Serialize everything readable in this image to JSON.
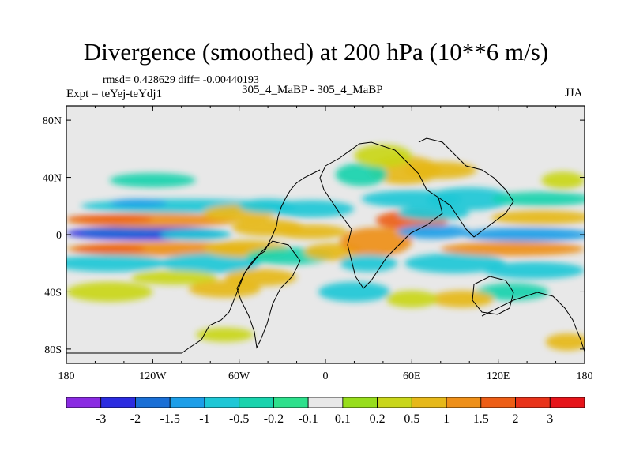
{
  "chart_data": {
    "type": "heatmap",
    "title": "Divergence (smoothed) at 200 hPa (10**6 m/s)",
    "stats_text": "rmsd= 0.428629  diff= -0.00440193",
    "experiment_label": "Expt = teYej-teYdj1",
    "center_label": "305_4_MaBP - 305_4_MaBP",
    "season": "JJA",
    "x_ticks": [
      {
        "value": -180,
        "label": "180"
      },
      {
        "value": -120,
        "label": "120W"
      },
      {
        "value": -60,
        "label": "60W"
      },
      {
        "value": 0,
        "label": "0"
      },
      {
        "value": 60,
        "label": "60E"
      },
      {
        "value": 120,
        "label": "120E"
      },
      {
        "value": 180,
        "label": "180"
      }
    ],
    "y_ticks": [
      {
        "value": 80,
        "label": "80N"
      },
      {
        "value": 40,
        "label": "40N"
      },
      {
        "value": 0,
        "label": "0"
      },
      {
        "value": -40,
        "label": "40S"
      },
      {
        "value": -80,
        "label": "80S"
      }
    ],
    "xlim": [
      -180,
      180
    ],
    "ylim": [
      -90,
      90
    ],
    "colorbar": {
      "levels": [
        "-3",
        "-2",
        "-1.5",
        "-1",
        "-0.5",
        "-0.2",
        "-0.1",
        "0.1",
        "0.2",
        "0.5",
        "1",
        "1.5",
        "2",
        "3"
      ],
      "colors": [
        "#8a2be2",
        "#2c2ce0",
        "#1a6fd6",
        "#1d9ee8",
        "#1ec7d6",
        "#19d3ad",
        "#2ee08c",
        "#e8e8e8",
        "#97dd1c",
        "#c9d61a",
        "#e6b81a",
        "#ee8f19",
        "#ed5e16",
        "#e8331a",
        "#e6141a"
      ]
    },
    "anomalies": [
      {
        "lon": -125,
        "lat": 1,
        "w": 55,
        "h": 5,
        "v": -2.6
      },
      {
        "lon": -140,
        "lat": 2,
        "w": 30,
        "h": 3,
        "v": -1.8
      },
      {
        "lon": -90,
        "lat": 0,
        "w": 25,
        "h": 4,
        "v": -1.0
      },
      {
        "lon": -120,
        "lat": 10,
        "w": 60,
        "h": 5,
        "v": 1.1
      },
      {
        "lon": -150,
        "lat": 11,
        "w": 30,
        "h": 3,
        "v": 1.6
      },
      {
        "lon": -110,
        "lat": -10,
        "w": 70,
        "h": 5,
        "v": 1.2
      },
      {
        "lon": -150,
        "lat": -10,
        "w": 25,
        "h": 3,
        "v": 1.6
      },
      {
        "lon": -100,
        "lat": 20,
        "w": 70,
        "h": 5,
        "v": -0.8
      },
      {
        "lon": -130,
        "lat": 22,
        "w": 20,
        "h": 3,
        "v": -1.5
      },
      {
        "lon": -150,
        "lat": -20,
        "w": 40,
        "h": 6,
        "v": -0.6
      },
      {
        "lon": -80,
        "lat": -20,
        "w": 35,
        "h": 7,
        "v": -0.6
      },
      {
        "lon": -105,
        "lat": -30,
        "w": 30,
        "h": 5,
        "v": 0.4
      },
      {
        "lon": -150,
        "lat": -40,
        "w": 30,
        "h": 7,
        "v": 0.3
      },
      {
        "lon": -120,
        "lat": 38,
        "w": 30,
        "h": 5,
        "v": -0.3
      },
      {
        "lon": -40,
        "lat": 5,
        "w": 25,
        "h": 6,
        "v": 0.9
      },
      {
        "lon": -60,
        "lat": 15,
        "w": 25,
        "h": 6,
        "v": 0.7
      },
      {
        "lon": -40,
        "lat": 20,
        "w": 20,
        "h": 5,
        "v": -0.6
      },
      {
        "lon": -10,
        "lat": 18,
        "w": 30,
        "h": 6,
        "v": -0.7
      },
      {
        "lon": -10,
        "lat": 2,
        "w": 25,
        "h": 5,
        "v": 0.6
      },
      {
        "lon": -55,
        "lat": -10,
        "w": 30,
        "h": 6,
        "v": 0.6
      },
      {
        "lon": -25,
        "lat": -15,
        "w": 30,
        "h": 6,
        "v": -0.5
      },
      {
        "lon": -45,
        "lat": -30,
        "w": 25,
        "h": 6,
        "v": 0.8
      },
      {
        "lon": -70,
        "lat": -38,
        "w": 25,
        "h": 6,
        "v": 0.5
      },
      {
        "lon": 5,
        "lat": -12,
        "w": 20,
        "h": 6,
        "v": 0.5
      },
      {
        "lon": 35,
        "lat": -5,
        "w": 25,
        "h": 10,
        "v": 1.1
      },
      {
        "lon": 30,
        "lat": -20,
        "w": 20,
        "h": 6,
        "v": -0.6
      },
      {
        "lon": 20,
        "lat": -40,
        "w": 25,
        "h": 7,
        "v": -0.6
      },
      {
        "lon": 60,
        "lat": 10,
        "w": 25,
        "h": 7,
        "v": 1.8
      },
      {
        "lon": 75,
        "lat": 15,
        "w": 25,
        "h": 5,
        "v": -1.0
      },
      {
        "lon": 75,
        "lat": 2,
        "w": 25,
        "h": 5,
        "v": -1.1
      },
      {
        "lon": 60,
        "lat": 25,
        "w": 35,
        "h": 6,
        "v": -0.7
      },
      {
        "lon": 55,
        "lat": 45,
        "w": 25,
        "h": 10,
        "v": 0.6
      },
      {
        "lon": 25,
        "lat": 42,
        "w": 18,
        "h": 8,
        "v": -0.5
      },
      {
        "lon": 100,
        "lat": 25,
        "w": 30,
        "h": 8,
        "v": -0.6
      },
      {
        "lon": 90,
        "lat": -20,
        "w": 35,
        "h": 7,
        "v": -0.7
      },
      {
        "lon": 140,
        "lat": 0,
        "w": 45,
        "h": 5,
        "v": -1.3
      },
      {
        "lon": 130,
        "lat": -10,
        "w": 50,
        "h": 5,
        "v": 1.2
      },
      {
        "lon": 150,
        "lat": 12,
        "w": 35,
        "h": 5,
        "v": 0.9
      },
      {
        "lon": 150,
        "lat": 25,
        "w": 35,
        "h": 5,
        "v": -0.5
      },
      {
        "lon": 145,
        "lat": -25,
        "w": 35,
        "h": 6,
        "v": -0.6
      },
      {
        "lon": 130,
        "lat": -40,
        "w": 25,
        "h": 6,
        "v": -0.5
      },
      {
        "lon": 165,
        "lat": 38,
        "w": 15,
        "h": 6,
        "v": 0.4
      },
      {
        "lon": 168,
        "lat": -75,
        "w": 15,
        "h": 6,
        "v": 0.6
      },
      {
        "lon": 95,
        "lat": -45,
        "w": 22,
        "h": 6,
        "v": 0.5
      },
      {
        "lon": 60,
        "lat": -45,
        "w": 18,
        "h": 6,
        "v": 0.4
      },
      {
        "lon": -70,
        "lat": -70,
        "w": 20,
        "h": 5,
        "v": 0.3
      },
      {
        "lon": 40,
        "lat": 55,
        "w": 20,
        "h": 8,
        "v": 0.4
      },
      {
        "lon": 80,
        "lat": 45,
        "w": 25,
        "h": 6,
        "v": 0.5
      }
    ]
  }
}
